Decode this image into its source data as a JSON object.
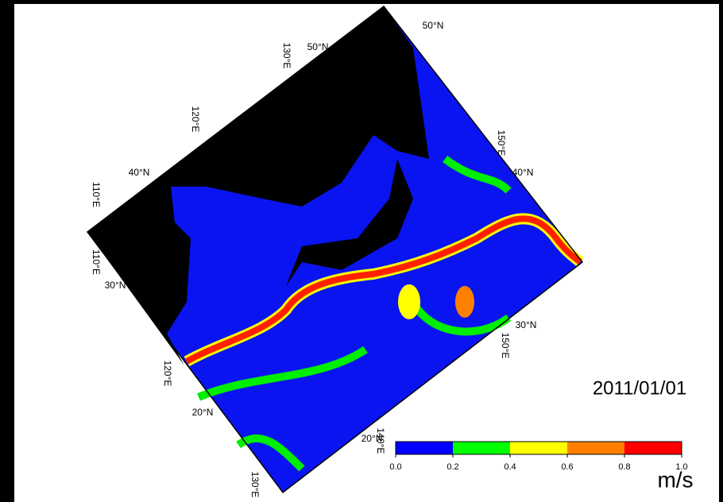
{
  "map": {
    "grid_labels": [
      "50°N",
      "50°N",
      "130°E",
      "120°E",
      "40°N",
      "110°E",
      "110°E",
      "30°N",
      "150°E",
      "40°N",
      "30°N",
      "150°E",
      "120°E",
      "20°N",
      "20°N",
      "140°E",
      "130°E"
    ],
    "date": "2011/01/01"
  },
  "colorbar": {
    "lim": [
      0,
      1
    ],
    "ticks": [
      {
        "value": 0,
        "label": "0.0"
      },
      {
        "value": 0.2,
        "label": "0.2"
      },
      {
        "value": 0.4,
        "label": "0.4"
      },
      {
        "value": 0.6,
        "label": "0.6"
      },
      {
        "value": 0.8,
        "label": "0.8"
      },
      {
        "value": 1,
        "label": "1.0"
      }
    ],
    "colors": [
      "#0000ff",
      "#00ff00",
      "#ffff00",
      "#ff8000",
      "#ff0000"
    ],
    "unit": "m/s"
  }
}
